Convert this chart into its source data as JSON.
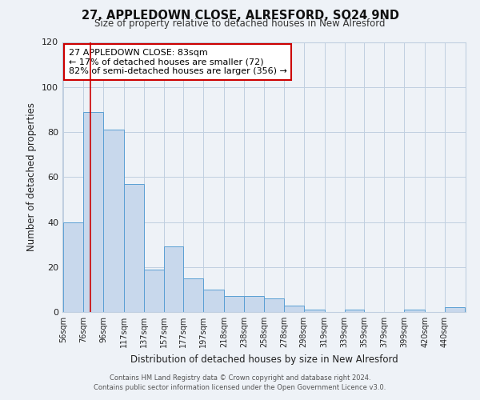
{
  "title": "27, APPLEDOWN CLOSE, ALRESFORD, SO24 9ND",
  "subtitle": "Size of property relative to detached houses in New Alresford",
  "xlabel": "Distribution of detached houses by size in New Alresford",
  "ylabel": "Number of detached properties",
  "bar_color": "#c8d8ec",
  "bar_edge_color": "#5a9fd4",
  "background_color": "#eef2f7",
  "grid_color": "#c0cfe0",
  "vline_x": 83,
  "vline_color": "#cc0000",
  "annotation_title": "27 APPLEDOWN CLOSE: 83sqm",
  "annotation_line1": "← 17% of detached houses are smaller (72)",
  "annotation_line2": "82% of semi-detached houses are larger (356) →",
  "annotation_box_edgecolor": "#cc0000",
  "bins": [
    56,
    76,
    96,
    117,
    137,
    157,
    177,
    197,
    218,
    238,
    258,
    278,
    298,
    319,
    339,
    359,
    379,
    399,
    420,
    440,
    460
  ],
  "counts": [
    40,
    89,
    81,
    57,
    19,
    29,
    15,
    10,
    7,
    7,
    6,
    3,
    1,
    0,
    1,
    0,
    0,
    1,
    0,
    2
  ],
  "ylim": [
    0,
    120
  ],
  "yticks": [
    0,
    20,
    40,
    60,
    80,
    100,
    120
  ],
  "footer1": "Contains HM Land Registry data © Crown copyright and database right 2024.",
  "footer2": "Contains public sector information licensed under the Open Government Licence v3.0."
}
